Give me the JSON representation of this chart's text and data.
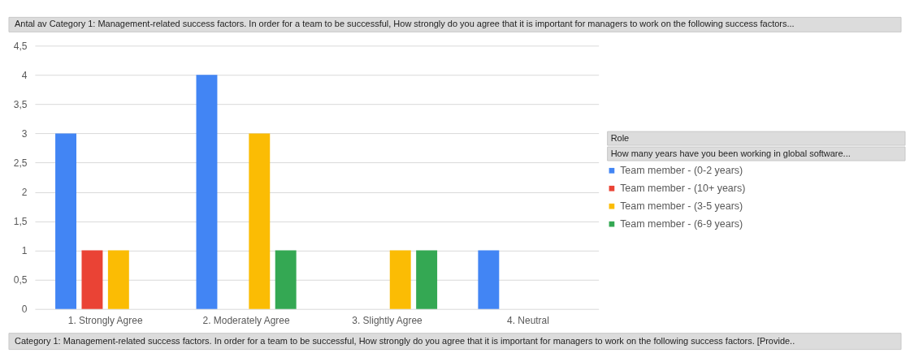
{
  "chart_data": {
    "type": "bar",
    "title": "Antal av Category 1: Management-related success factors. In order for a team to be successful, How strongly do you agree that it is important for managers to work on the following success factors...",
    "xlabel": "Category 1: Management-related success factors. In order for a team to be successful, How strongly do you agree that it is important for managers to work on the following success factors. [Provide..",
    "legend_title": "Role",
    "annotations": [
      "How many years have you been working in global software..."
    ],
    "categories": [
      "1. Strongly Agree",
      "2. Moderately Agree",
      "3. Slightly Agree",
      "4. Neutral"
    ],
    "series": [
      {
        "name": "Team member - (0-2 years)",
        "color": "#4285f4",
        "values": [
          3,
          4,
          null,
          1
        ]
      },
      {
        "name": "Team member - (10+ years)",
        "color": "#ea4335",
        "values": [
          1,
          null,
          null,
          null
        ]
      },
      {
        "name": "Team member - (3-5 years)",
        "color": "#fbbc04",
        "values": [
          1,
          3,
          1,
          null
        ]
      },
      {
        "name": "Team member - (6-9 years)",
        "color": "#34a853",
        "values": [
          null,
          1,
          1,
          null
        ]
      }
    ],
    "ylim": [
      0,
      4.5
    ],
    "yticks": [
      0,
      {
        "value": 0.5,
        "label": "0,5"
      },
      1,
      {
        "value": 1.5,
        "label": "1,5"
      },
      2,
      {
        "value": 2.5,
        "label": "2,5"
      },
      3,
      {
        "value": 3.5,
        "label": "3,5"
      },
      4,
      {
        "value": 4.5,
        "label": "4,5"
      }
    ],
    "grid": "y",
    "legend": "right"
  }
}
